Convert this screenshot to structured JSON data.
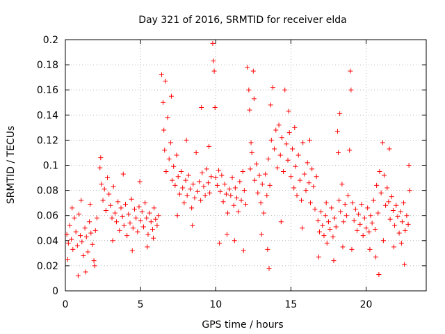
{
  "chart_data": {
    "type": "scatter",
    "title": "Day 321 of 2016, SRMTID for receiver elda",
    "xlabel": "GPS time / hours",
    "ylabel": "SRMTID / TECUs",
    "xlim": [
      0,
      24
    ],
    "ylim": [
      0,
      0.2
    ],
    "xticks": [
      0,
      5,
      10,
      15,
      20
    ],
    "xtick_labels": [
      "0",
      "5",
      "10",
      "15",
      "20"
    ],
    "yticks": [
      0,
      0.02,
      0.04,
      0.06,
      0.08,
      0.1,
      0.12,
      0.14,
      0.16,
      0.18,
      0.2
    ],
    "ytick_labels": [
      "0",
      "0.02",
      "0.04",
      "0.06",
      "0.08",
      "0.1",
      "0.12",
      "0.14",
      "0.16",
      "0.18",
      "0.2"
    ],
    "grid": true,
    "marker": "plus",
    "series": [
      {
        "name": "SRMTID",
        "color": "#ff0000",
        "points": [
          [
            0.1,
            0.045
          ],
          [
            0.2,
            0.038
          ],
          [
            0.3,
            0.052
          ],
          [
            0.4,
            0.041
          ],
          [
            0.5,
            0.033
          ],
          [
            0.6,
            0.058
          ],
          [
            0.7,
            0.047
          ],
          [
            0.8,
            0.036
          ],
          [
            0.9,
            0.061
          ],
          [
            1.0,
            0.044
          ],
          [
            1.1,
            0.039
          ],
          [
            1.2,
            0.028
          ],
          [
            1.3,
            0.05
          ],
          [
            1.4,
            0.043
          ],
          [
            1.5,
            0.031
          ],
          [
            1.6,
            0.055
          ],
          [
            1.7,
            0.046
          ],
          [
            1.8,
            0.037
          ],
          [
            1.9,
            0.024
          ],
          [
            2.0,
            0.048
          ],
          [
            0.15,
            0.025
          ],
          [
            0.45,
            0.066
          ],
          [
            0.85,
            0.012
          ],
          [
            1.05,
            0.072
          ],
          [
            1.35,
            0.015
          ],
          [
            1.65,
            0.069
          ],
          [
            1.95,
            0.02
          ],
          [
            2.1,
            0.058
          ],
          [
            2.3,
            0.098
          ],
          [
            2.4,
            0.085
          ],
          [
            2.5,
            0.072
          ],
          [
            2.6,
            0.081
          ],
          [
            2.7,
            0.064
          ],
          [
            2.8,
            0.09
          ],
          [
            2.9,
            0.077
          ],
          [
            3.0,
            0.068
          ],
          [
            3.1,
            0.058
          ],
          [
            3.2,
            0.083
          ],
          [
            3.3,
            0.062
          ],
          [
            3.4,
            0.055
          ],
          [
            3.5,
            0.071
          ],
          [
            3.6,
            0.048
          ],
          [
            3.7,
            0.066
          ],
          [
            3.8,
            0.059
          ],
          [
            3.9,
            0.052
          ],
          [
            4.0,
            0.069
          ],
          [
            4.1,
            0.044
          ],
          [
            4.2,
            0.061
          ],
          [
            4.3,
            0.054
          ],
          [
            4.4,
            0.073
          ],
          [
            4.5,
            0.05
          ],
          [
            4.6,
            0.065
          ],
          [
            4.7,
            0.058
          ],
          [
            4.8,
            0.047
          ],
          [
            4.9,
            0.067
          ],
          [
            5.0,
            0.056
          ],
          [
            5.1,
            0.063
          ],
          [
            5.2,
            0.051
          ],
          [
            5.3,
            0.07
          ],
          [
            5.4,
            0.058
          ],
          [
            5.5,
            0.045
          ],
          [
            5.6,
            0.062
          ],
          [
            5.7,
            0.055
          ],
          [
            5.8,
            0.049
          ],
          [
            5.9,
            0.066
          ],
          [
            6.0,
            0.057
          ],
          [
            6.1,
            0.052
          ],
          [
            6.2,
            0.06
          ],
          [
            2.35,
            0.106
          ],
          [
            3.15,
            0.04
          ],
          [
            3.85,
            0.093
          ],
          [
            4.45,
            0.032
          ],
          [
            4.95,
            0.087
          ],
          [
            5.45,
            0.035
          ],
          [
            5.85,
            0.042
          ],
          [
            6.4,
            0.172
          ],
          [
            6.5,
            0.15
          ],
          [
            6.55,
            0.128
          ],
          [
            6.6,
            0.112
          ],
          [
            6.65,
            0.167
          ],
          [
            6.7,
            0.095
          ],
          [
            6.8,
            0.138
          ],
          [
            6.9,
            0.105
          ],
          [
            7.0,
            0.118
          ],
          [
            7.1,
            0.088
          ],
          [
            7.2,
            0.099
          ],
          [
            7.3,
            0.084
          ],
          [
            7.4,
            0.108
          ],
          [
            7.5,
            0.091
          ],
          [
            7.6,
            0.077
          ],
          [
            7.7,
            0.095
          ],
          [
            7.8,
            0.082
          ],
          [
            7.9,
            0.07
          ],
          [
            8.0,
            0.088
          ],
          [
            8.1,
            0.076
          ],
          [
            8.2,
            0.092
          ],
          [
            8.3,
            0.081
          ],
          [
            8.4,
            0.066
          ],
          [
            8.5,
            0.085
          ],
          [
            8.6,
            0.074
          ],
          [
            8.7,
            0.11
          ],
          [
            8.8,
            0.079
          ],
          [
            8.9,
            0.087
          ],
          [
            9.0,
            0.072
          ],
          [
            9.1,
            0.094
          ],
          [
            9.2,
            0.083
          ],
          [
            9.3,
            0.076
          ],
          [
            9.4,
            0.097
          ],
          [
            9.5,
            0.086
          ],
          [
            9.6,
            0.078
          ],
          [
            9.7,
            0.091
          ],
          [
            9.8,
            0.197
          ],
          [
            9.85,
            0.183
          ],
          [
            9.9,
            0.175
          ],
          [
            9.95,
            0.146
          ],
          [
            10.0,
            0.09
          ],
          [
            10.1,
            0.084
          ],
          [
            10.2,
            0.096
          ],
          [
            10.3,
            0.079
          ],
          [
            10.4,
            0.092
          ],
          [
            10.5,
            0.071
          ],
          [
            10.6,
            0.085
          ],
          [
            10.7,
            0.077
          ],
          [
            10.8,
            0.062
          ],
          [
            10.9,
            0.081
          ],
          [
            7.05,
            0.155
          ],
          [
            7.45,
            0.06
          ],
          [
            8.05,
            0.12
          ],
          [
            8.45,
            0.052
          ],
          [
            9.05,
            0.146
          ],
          [
            9.55,
            0.115
          ],
          [
            10.25,
            0.038
          ],
          [
            10.75,
            0.045
          ],
          [
            11.0,
            0.076
          ],
          [
            11.1,
            0.09
          ],
          [
            11.2,
            0.068
          ],
          [
            11.3,
            0.082
          ],
          [
            11.4,
            0.074
          ],
          [
            11.5,
            0.063
          ],
          [
            11.6,
            0.087
          ],
          [
            11.7,
            0.072
          ],
          [
            11.8,
            0.095
          ],
          [
            11.9,
            0.08
          ],
          [
            12.0,
            0.069
          ],
          [
            12.1,
            0.178
          ],
          [
            12.2,
            0.16
          ],
          [
            12.25,
            0.144
          ],
          [
            12.3,
            0.097
          ],
          [
            12.4,
            0.11
          ],
          [
            12.5,
            0.175
          ],
          [
            12.55,
            0.153
          ],
          [
            12.6,
            0.088
          ],
          [
            12.7,
            0.101
          ],
          [
            12.8,
            0.078
          ],
          [
            12.9,
            0.092
          ],
          [
            13.0,
            0.07
          ],
          [
            13.1,
            0.085
          ],
          [
            13.2,
            0.062
          ],
          [
            13.3,
            0.093
          ],
          [
            13.4,
            0.076
          ],
          [
            13.5,
            0.105
          ],
          [
            13.6,
            0.084
          ],
          [
            13.7,
            0.12
          ],
          [
            13.8,
            0.162
          ],
          [
            13.9,
            0.113
          ],
          [
            14.0,
            0.128
          ],
          [
            14.1,
            0.098
          ],
          [
            14.2,
            0.132
          ],
          [
            14.3,
            0.108
          ],
          [
            14.4,
            0.122
          ],
          [
            14.5,
            0.095
          ],
          [
            14.6,
            0.16
          ],
          [
            14.7,
            0.117
          ],
          [
            11.25,
            0.04
          ],
          [
            11.85,
            0.032
          ],
          [
            12.35,
            0.118
          ],
          [
            13.05,
            0.045
          ],
          [
            13.45,
            0.033
          ],
          [
            13.55,
            0.018
          ],
          [
            13.65,
            0.148
          ],
          [
            14.35,
            0.055
          ],
          [
            14.85,
            0.143
          ],
          [
            14.8,
            0.104
          ],
          [
            14.9,
            0.126
          ],
          [
            15.0,
            0.091
          ],
          [
            15.1,
            0.113
          ],
          [
            15.2,
            0.082
          ],
          [
            15.3,
            0.099
          ],
          [
            15.4,
            0.076
          ],
          [
            15.5,
            0.108
          ],
          [
            15.6,
            0.088
          ],
          [
            15.7,
            0.072
          ],
          [
            15.8,
            0.118
          ],
          [
            15.9,
            0.093
          ],
          [
            16.0,
            0.08
          ],
          [
            16.1,
            0.102
          ],
          [
            16.2,
            0.086
          ],
          [
            16.3,
            0.07
          ],
          [
            16.4,
            0.097
          ],
          [
            16.5,
            0.083
          ],
          [
            16.6,
            0.065
          ],
          [
            16.7,
            0.091
          ],
          [
            16.8,
            0.056
          ],
          [
            16.9,
            0.047
          ],
          [
            17.0,
            0.063
          ],
          [
            17.1,
            0.052
          ],
          [
            17.2,
            0.044
          ],
          [
            17.3,
            0.06
          ],
          [
            17.4,
            0.038
          ],
          [
            17.5,
            0.055
          ],
          [
            17.6,
            0.049
          ],
          [
            17.7,
            0.066
          ],
          [
            17.8,
            0.043
          ],
          [
            17.9,
            0.058
          ],
          [
            18.0,
            0.051
          ],
          [
            18.1,
            0.127
          ],
          [
            18.15,
            0.11
          ],
          [
            18.2,
            0.072
          ],
          [
            18.3,
            0.063
          ],
          [
            18.4,
            0.085
          ],
          [
            18.5,
            0.055
          ],
          [
            18.6,
            0.069
          ],
          [
            15.25,
            0.13
          ],
          [
            15.75,
            0.05
          ],
          [
            16.25,
            0.12
          ],
          [
            16.85,
            0.027
          ],
          [
            17.35,
            0.07
          ],
          [
            17.85,
            0.024
          ],
          [
            18.25,
            0.141
          ],
          [
            18.45,
            0.035
          ],
          [
            18.7,
            0.06
          ],
          [
            18.8,
            0.076
          ],
          [
            18.9,
            0.112
          ],
          [
            18.95,
            0.175
          ],
          [
            19.0,
            0.16
          ],
          [
            19.1,
            0.07
          ],
          [
            19.2,
            0.056
          ],
          [
            19.3,
            0.065
          ],
          [
            19.4,
            0.048
          ],
          [
            19.5,
            0.061
          ],
          [
            19.6,
            0.053
          ],
          [
            19.7,
            0.069
          ],
          [
            19.8,
            0.044
          ],
          [
            19.9,
            0.058
          ],
          [
            20.0,
            0.05
          ],
          [
            20.1,
            0.066
          ],
          [
            20.2,
            0.047
          ],
          [
            20.3,
            0.06
          ],
          [
            20.4,
            0.054
          ],
          [
            20.5,
            0.072
          ],
          [
            20.6,
            0.049
          ],
          [
            20.7,
            0.084
          ],
          [
            20.8,
            0.062
          ],
          [
            20.9,
            0.095
          ],
          [
            21.0,
            0.078
          ],
          [
            21.1,
            0.118
          ],
          [
            21.2,
            0.092
          ],
          [
            21.3,
            0.068
          ],
          [
            21.4,
            0.082
          ],
          [
            21.5,
            0.071
          ],
          [
            21.6,
            0.057
          ],
          [
            21.7,
            0.075
          ],
          [
            21.8,
            0.064
          ],
          [
            21.9,
            0.052
          ],
          [
            22.0,
            0.068
          ],
          [
            22.1,
            0.059
          ],
          [
            22.2,
            0.046
          ],
          [
            22.3,
            0.063
          ],
          [
            22.4,
            0.055
          ],
          [
            22.5,
            0.07
          ],
          [
            22.6,
            0.048
          ],
          [
            22.7,
            0.06
          ],
          [
            22.8,
            0.053
          ],
          [
            22.85,
            0.1
          ],
          [
            22.9,
            0.08
          ],
          [
            19.05,
            0.033
          ],
          [
            20.25,
            0.033
          ],
          [
            20.65,
            0.027
          ],
          [
            20.85,
            0.013
          ],
          [
            21.15,
            0.04
          ],
          [
            21.55,
            0.113
          ],
          [
            21.85,
            0.035
          ],
          [
            22.35,
            0.038
          ],
          [
            22.55,
            0.021
          ]
        ]
      }
    ]
  }
}
